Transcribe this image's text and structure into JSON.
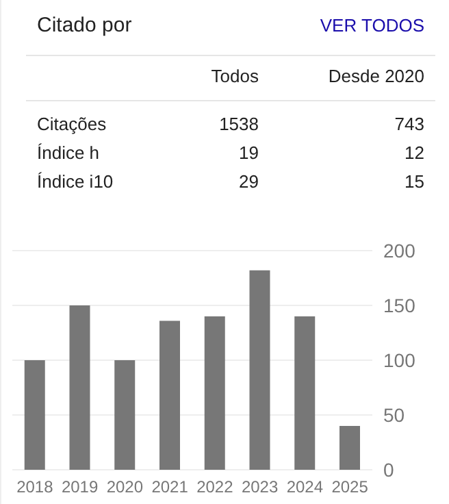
{
  "chart_data": [
    {
      "type": "other",
      "title": "Citado por",
      "annotations": [
        "VER TODOS",
        "Todos",
        "Desde 2020",
        "Citações",
        "1538",
        "743",
        "Índice h",
        "19",
        "12",
        "Índice i10",
        "29",
        "15"
      ]
    },
    {
      "type": "bar",
      "categories": [
        "2018",
        "2019",
        "2020",
        "2021",
        "2022",
        "2023",
        "2024",
        "2025"
      ],
      "values": [
        100,
        150,
        100,
        136,
        140,
        182,
        140,
        40
      ],
      "color": "#777777",
      "ylim": [
        0,
        200
      ],
      "yticks": [
        0,
        50,
        100,
        150,
        200
      ],
      "grid": "y"
    }
  ]
}
